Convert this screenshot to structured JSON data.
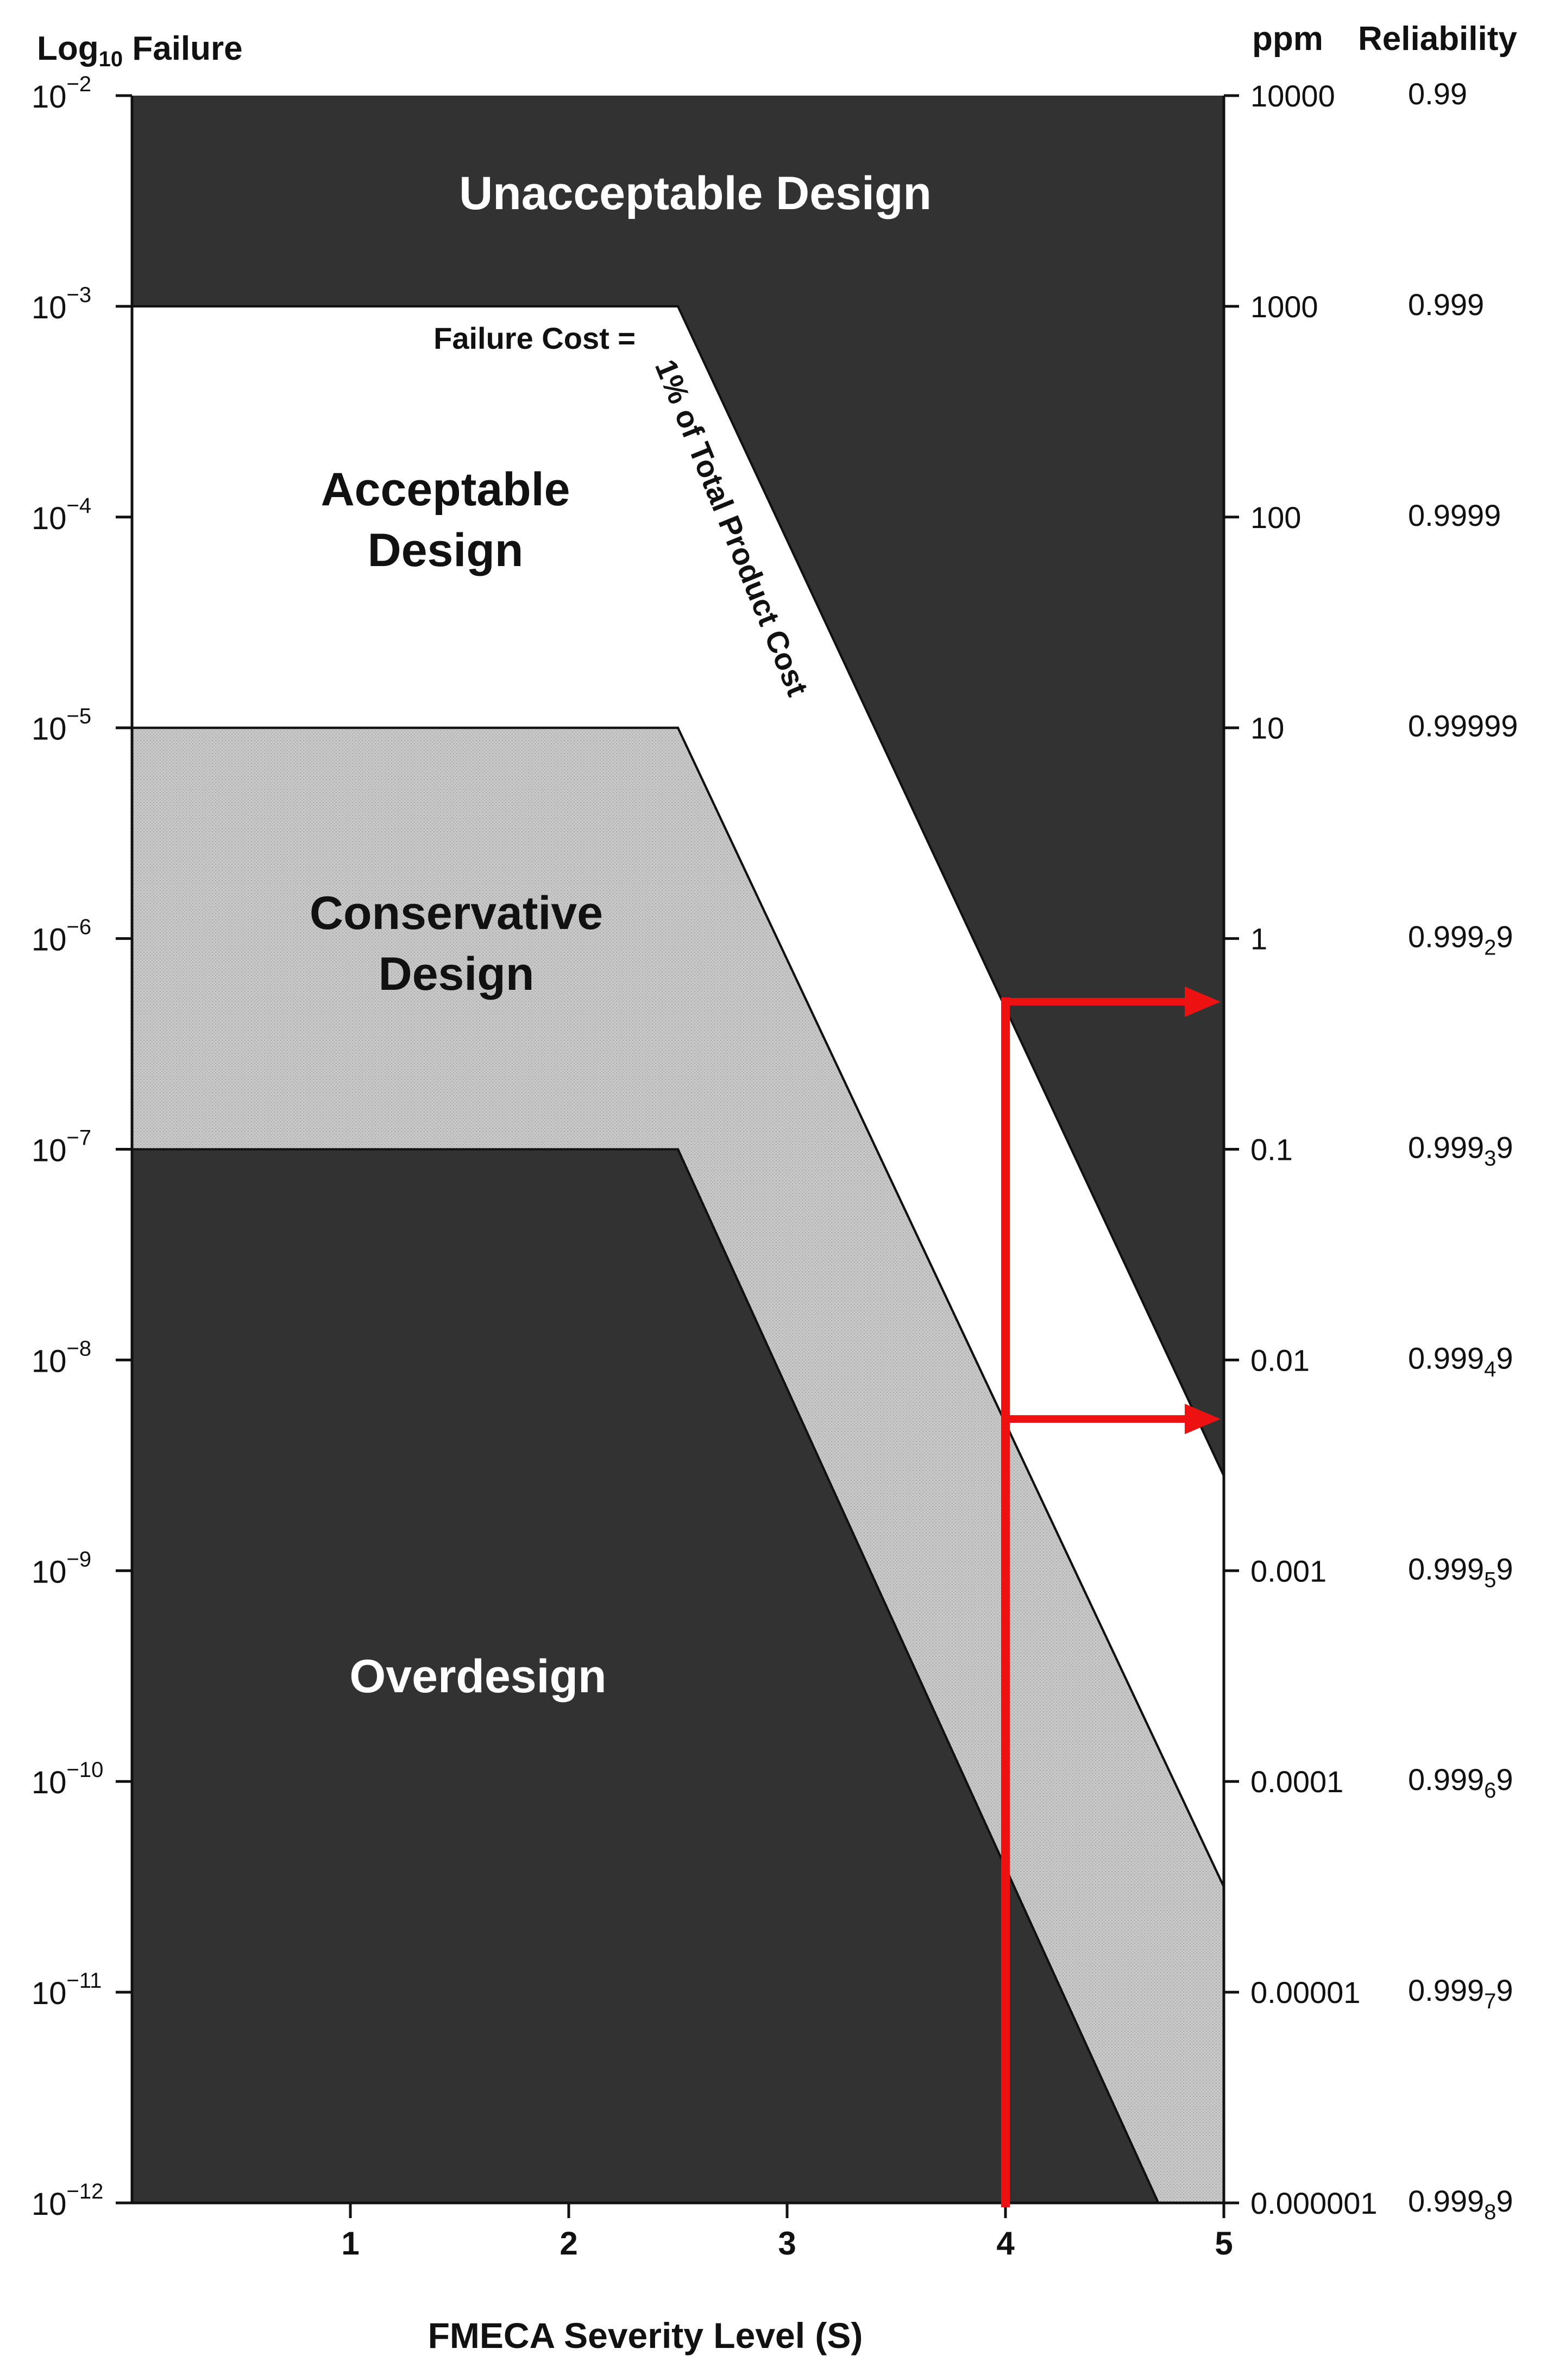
{
  "chart_data": {
    "type": "area",
    "title": "",
    "xlabel": "FMECA Severity Level (S)",
    "ylabel_left": "Log",
    "ylabel_left_sub": "10",
    "ylabel_left_rest": " Failure",
    "ylabel_right_ppm": "ppm",
    "ylabel_right_reliability": "Reliability",
    "x_ticks": [
      "1",
      "2",
      "3",
      "4",
      "5"
    ],
    "xlim": [
      0,
      5
    ],
    "y_log_exponents": [
      -2,
      -3,
      -4,
      -5,
      -6,
      -7,
      -8,
      -9,
      -10,
      -11,
      -12
    ],
    "y_tick_labels": [
      "10",
      "10",
      "10",
      "10",
      "10",
      "10",
      "10",
      "10",
      "10",
      "10",
      "10"
    ],
    "y_tick_superscripts": [
      "−2",
      "−3",
      "−4",
      "−5",
      "−6",
      "−7",
      "−8",
      "−9",
      "−10",
      "−11",
      "−12"
    ],
    "ylim_log10": [
      -12,
      -2
    ],
    "ppm_ticks": [
      "10000",
      "1000",
      "100",
      "10",
      "1",
      "0.1",
      "0.01",
      "0.001",
      "0.0001",
      "0.00001",
      "0.000001"
    ],
    "reliability_ticks": [
      {
        "main": "0.99",
        "sub": "",
        "tail": ""
      },
      {
        "main": "0.999",
        "sub": "",
        "tail": ""
      },
      {
        "main": "0.9999",
        "sub": "",
        "tail": ""
      },
      {
        "main": "0.99999",
        "sub": "",
        "tail": ""
      },
      {
        "main": "0.999",
        "sub": "2",
        "tail": "9"
      },
      {
        "main": "0.999",
        "sub": "3",
        "tail": "9"
      },
      {
        "main": "0.999",
        "sub": "4",
        "tail": "9"
      },
      {
        "main": "0.999",
        "sub": "5",
        "tail": "9"
      },
      {
        "main": "0.999",
        "sub": "6",
        "tail": "9"
      },
      {
        "main": "0.999",
        "sub": "7",
        "tail": "9"
      },
      {
        "main": "0.999",
        "sub": "8",
        "tail": "9"
      }
    ],
    "boundaries": [
      {
        "name": "Failure Cost = 1% of Total Product Cost",
        "points": [
          [
            0,
            -3
          ],
          [
            2.5,
            -3
          ],
          [
            5,
            -8.55
          ]
        ]
      },
      {
        "name": "Acceptable/Conservative boundary",
        "points": [
          [
            0,
            -5
          ],
          [
            2.5,
            -5
          ],
          [
            5,
            -10.5
          ]
        ]
      },
      {
        "name": "Conservative/Overdesign boundary",
        "points": [
          [
            0,
            -7
          ],
          [
            2.5,
            -7
          ],
          [
            4.7,
            -12
          ]
        ]
      }
    ],
    "regions": [
      {
        "label": "Unacceptable Design",
        "lines": [
          "Unacceptable Design"
        ],
        "color": "#323232",
        "text_color": "#ffffff"
      },
      {
        "label": "Acceptable Design",
        "lines": [
          "Acceptable",
          "Design"
        ],
        "color": "#ffffff",
        "text_color": "#111111"
      },
      {
        "label": "Conservative Design",
        "lines": [
          "Conservative",
          "Design"
        ],
        "color": "#c8c8c8",
        "text_color": "#111111"
      },
      {
        "label": "Overdesign",
        "lines": [
          "Overdesign"
        ],
        "color": "#323232",
        "text_color": "#ffffff"
      }
    ],
    "annotations": [
      {
        "text": "Failure Cost =",
        "role": "cost-label-left"
      },
      {
        "text": "1% of Total Product Cost",
        "role": "cost-label-diagonal"
      }
    ],
    "highlight": {
      "color": "#ee1111",
      "x": 4,
      "y_from": -12,
      "arrow_targets_log10": [
        -6.3,
        -8.28
      ]
    },
    "grid": false
  }
}
